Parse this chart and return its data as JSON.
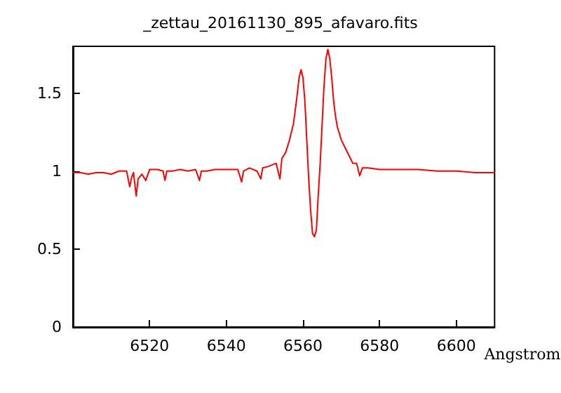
{
  "chart_data": {
    "type": "line",
    "title": "_zettau_20161130_895_afavaro.fits",
    "xlabel": "Angstrom",
    "x": [
      6500,
      6502,
      6504,
      6506,
      6508,
      6510,
      6512,
      6514,
      6514.8,
      6515.3,
      6515.8,
      6516.5,
      6517,
      6518,
      6519,
      6520,
      6522,
      6523.5,
      6524,
      6524.5,
      6526,
      6528,
      6530,
      6532,
      6533,
      6533.5,
      6535,
      6537,
      6540,
      6543,
      6544,
      6544.5,
      6546,
      6548,
      6549,
      6549.5,
      6551,
      6553,
      6554,
      6554.5,
      6555.5,
      6556.5,
      6557.5,
      6558.3,
      6559,
      6559.5,
      6560,
      6560.5,
      6561,
      6561.5,
      6562,
      6562.5,
      6563,
      6563.5,
      6564,
      6564.5,
      6565,
      6565.5,
      6566,
      6566.5,
      6567,
      6567.5,
      6568,
      6568.5,
      6569,
      6570,
      6571,
      6572,
      6573,
      6574,
      6574.8,
      6575.5,
      6577,
      6580,
      6583,
      6586,
      6590,
      6595,
      6600,
      6605,
      6610
    ],
    "series": [
      {
        "color": "#ff0000",
        "values": [
          0.99,
          0.99,
          0.98,
          0.99,
          0.99,
          0.98,
          1.0,
          1.0,
          0.9,
          0.96,
          0.99,
          0.84,
          0.95,
          0.98,
          0.94,
          1.01,
          1.01,
          1.0,
          0.94,
          1.0,
          1.0,
          1.01,
          1.0,
          1.01,
          0.94,
          1.0,
          1.0,
          1.01,
          1.01,
          1.01,
          0.93,
          1.0,
          1.02,
          1.0,
          0.95,
          1.02,
          1.03,
          1.05,
          0.95,
          1.08,
          1.12,
          1.2,
          1.3,
          1.45,
          1.6,
          1.65,
          1.6,
          1.45,
          1.2,
          0.95,
          0.75,
          0.6,
          0.58,
          0.62,
          0.85,
          1.05,
          1.3,
          1.55,
          1.72,
          1.78,
          1.72,
          1.6,
          1.45,
          1.35,
          1.28,
          1.2,
          1.15,
          1.1,
          1.05,
          1.05,
          0.97,
          1.02,
          1.02,
          1.01,
          1.01,
          1.01,
          1.01,
          1.0,
          1.0,
          0.99,
          0.99
        ]
      }
    ],
    "xlim": [
      6500,
      6610
    ],
    "xticks": [
      6520,
      6540,
      6560,
      6580,
      6600
    ],
    "ylim": [
      0,
      1.8
    ],
    "yticks": [
      0,
      0.5,
      1,
      1.5
    ],
    "grid": false,
    "marker": "none",
    "line_style": "solid"
  }
}
